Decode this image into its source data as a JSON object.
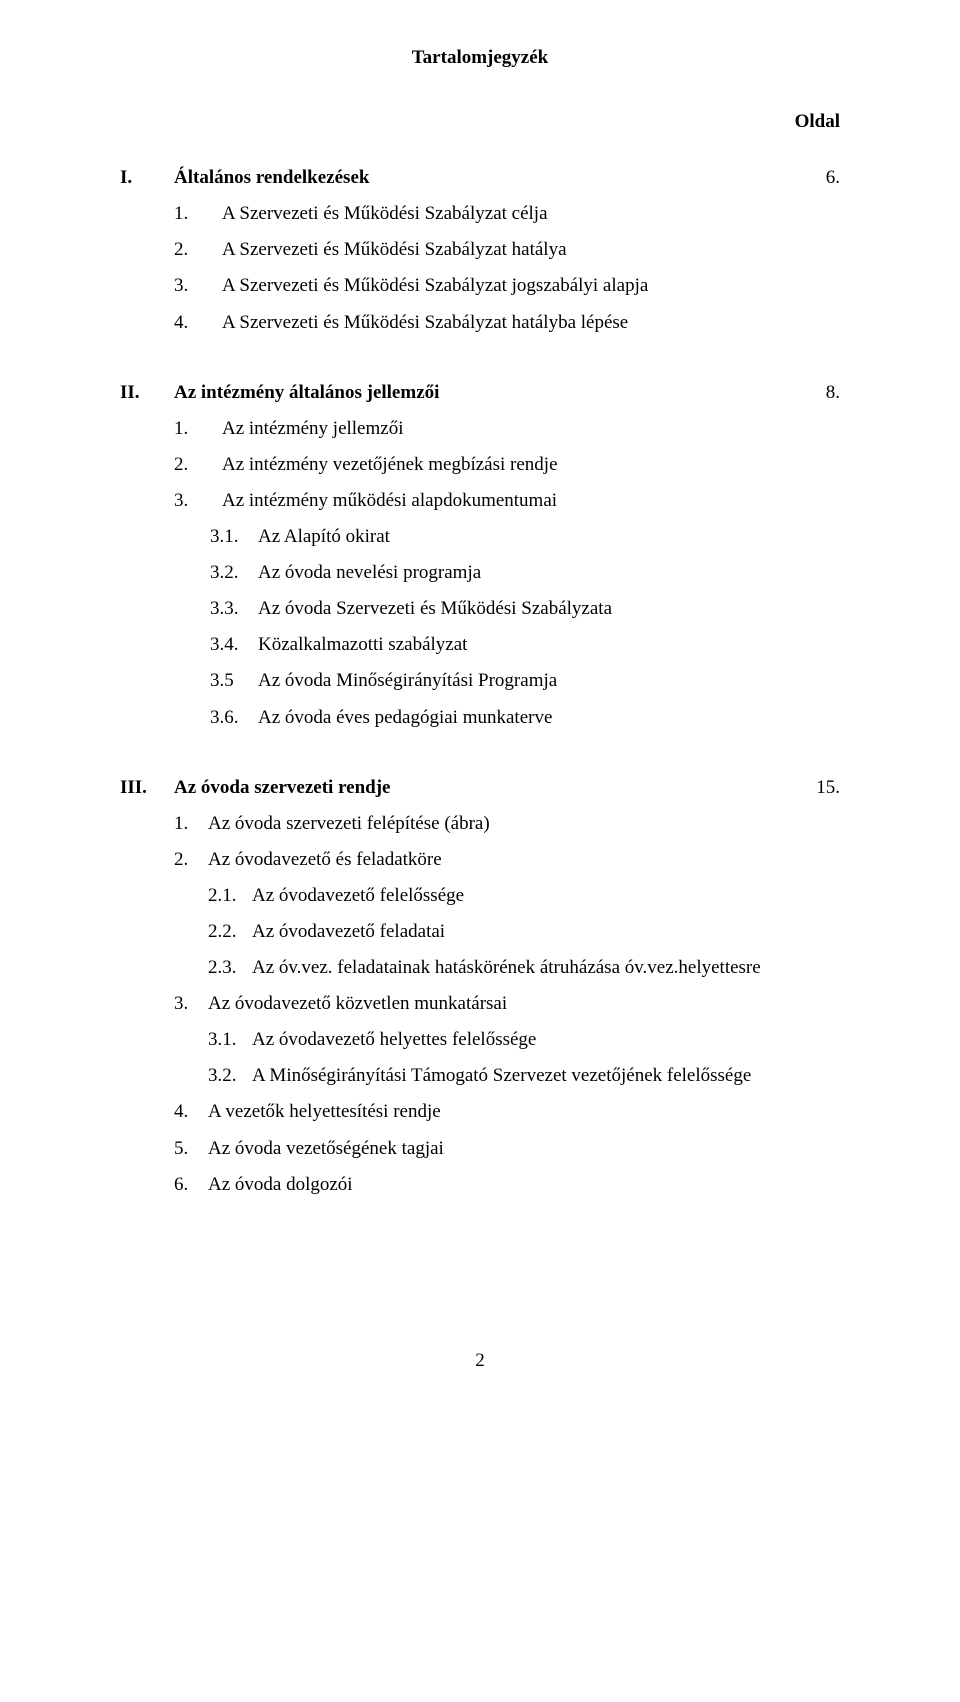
{
  "title": "Tartalomjegyzék",
  "page_label": "Oldal",
  "footer_page": "2",
  "sections": [
    {
      "roman": "I.",
      "heading": "Általános rendelkezések",
      "page": "6.",
      "items": [
        {
          "n": "1.",
          "t": "A Szervezeti és Működési Szabályzat célja"
        },
        {
          "n": "2.",
          "t": "A Szervezeti és Működési Szabályzat hatálya"
        },
        {
          "n": "3.",
          "t": "A Szervezeti és Működési Szabályzat jogszabályi alapja"
        },
        {
          "n": "4.",
          "t": "A Szervezeti és Működési Szabályzat hatályba lépése"
        }
      ]
    },
    {
      "roman": "II.",
      "heading": "Az intézmény általános jellemzői",
      "page": "8.",
      "items": [
        {
          "n": "1.",
          "t": "Az intézmény jellemzői"
        },
        {
          "n": "2.",
          "t": "Az intézmény vezetőjének megbízási rendje"
        },
        {
          "n": "3.",
          "t": "Az intézmény működési alapdokumentumai"
        },
        {
          "n": "3.1.",
          "t": "Az Alapító okirat",
          "lvl": 2
        },
        {
          "n": "3.2.",
          "t": "Az óvoda nevelési programja",
          "lvl": 2
        },
        {
          "n": "3.3.",
          "t": "Az óvoda Szervezeti és Működési Szabályzata",
          "lvl": 2
        },
        {
          "n": "3.4.",
          "t": "Közalkalmazotti szabályzat",
          "lvl": 2
        },
        {
          "n": "3.5",
          "t": "Az óvoda Minőségirányítási Programja",
          "lvl": 2
        },
        {
          "n": "3.6.",
          "t": "Az óvoda éves pedagógiai munkaterve",
          "lvl": 2
        }
      ]
    },
    {
      "roman": "III.",
      "heading": "Az óvoda szervezeti rendje",
      "page": "15.",
      "items": [
        {
          "n": "1.",
          "t": "Az óvoda szervezeti felépítése (ábra)"
        },
        {
          "n": "2.",
          "t": "Az óvodavezető és feladatköre"
        },
        {
          "n": "2.1.",
          "t": "Az óvodavezető felelőssége",
          "lvl": 2,
          "tight": true
        },
        {
          "n": "2.2.",
          "t": "Az óvodavezető feladatai",
          "lvl": 2,
          "tight": true
        },
        {
          "n": "2.3.",
          "t": "Az óv.vez. feladatainak hatáskörének átruházása óv.vez.helyettesre",
          "lvl": 2,
          "tight": true
        },
        {
          "n": "3.",
          "t": "Az óvodavezető közvetlen munkatársai"
        },
        {
          "n": "3.1.",
          "t": "Az óvodavezető helyettes felelőssége",
          "lvl": 2,
          "tight": true
        },
        {
          "n": "3.2.",
          "t": "A Minőségirányítási  Támogató Szervezet vezetőjének felelőssége",
          "lvl": 2,
          "tight": true
        },
        {
          "n": "4.",
          "t": "A vezetők helyettesítési rendje"
        },
        {
          "n": "5.",
          "t": "Az óvoda vezetőségének tagjai"
        },
        {
          "n": "6.",
          "t": "Az óvoda dolgozói"
        }
      ]
    }
  ]
}
